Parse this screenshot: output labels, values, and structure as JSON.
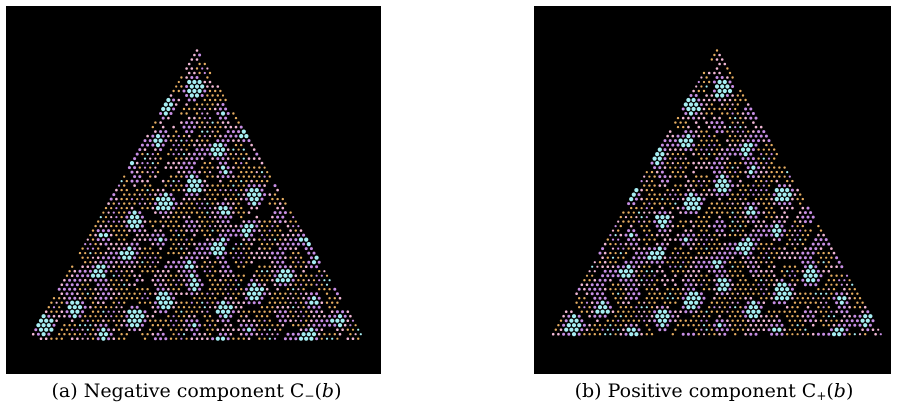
{
  "figures": [
    {
      "id": "a",
      "label": "(a)",
      "caption_text": "Negative component",
      "symbol": "C",
      "subscript": "−",
      "argument": "b",
      "background": "#000000",
      "palette": {
        "cyan": "#a7eef3",
        "magenta": "#c88fe6",
        "orange": "#e8ae62",
        "pink": "#f2b8d6"
      }
    },
    {
      "id": "b",
      "label": "(b)",
      "caption_text": "Positive component",
      "symbol": "C",
      "subscript": "+",
      "argument": "b",
      "background": "#000000",
      "palette": {
        "cyan": "#a7eef3",
        "magenta": "#c88fe6",
        "orange": "#e8ae62",
        "pink": "#f2b8d6"
      }
    }
  ]
}
